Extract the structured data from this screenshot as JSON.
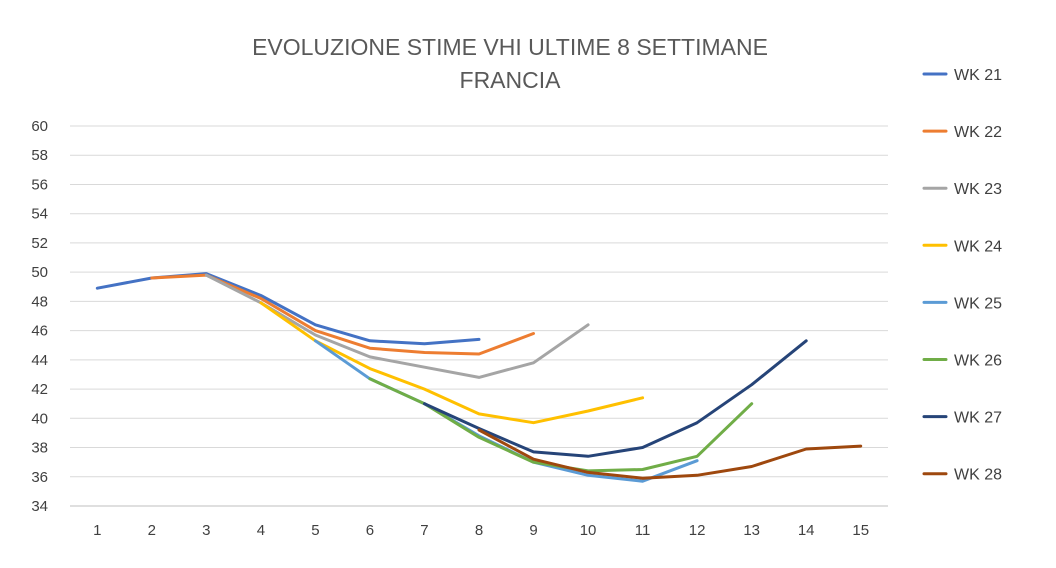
{
  "chart_data": {
    "type": "line",
    "title": [
      "EVOLUZIONE STIME VHI ULTIME 8 SETTIMANE",
      "FRANCIA"
    ],
    "xlabel": "",
    "ylabel": "",
    "x": [
      1,
      2,
      3,
      4,
      5,
      6,
      7,
      8,
      9,
      10,
      11,
      12,
      13,
      14,
      15
    ],
    "xlim": [
      0.5,
      15.5
    ],
    "ylim": [
      34,
      60
    ],
    "yticks": [
      34,
      36,
      38,
      40,
      42,
      44,
      46,
      48,
      50,
      52,
      54,
      56,
      58,
      60
    ],
    "grid": "horizontal",
    "legend_position": "right",
    "series": [
      {
        "name": "WK 21",
        "color": "#4472C4",
        "x": [
          1,
          2,
          3,
          4,
          5,
          6,
          7,
          8
        ],
        "values": [
          48.9,
          49.6,
          49.9,
          48.4,
          46.4,
          45.3,
          45.1,
          45.4
        ]
      },
      {
        "name": "WK 22",
        "color": "#ED7D31",
        "x": [
          2,
          3,
          4,
          5,
          6,
          7,
          8,
          9
        ],
        "values": [
          49.6,
          49.8,
          48.2,
          46.0,
          44.8,
          44.5,
          44.4,
          45.8
        ]
      },
      {
        "name": "WK 23",
        "color": "#A5A5A5",
        "x": [
          3,
          4,
          5,
          6,
          7,
          8,
          9,
          10
        ],
        "values": [
          49.8,
          47.9,
          45.7,
          44.2,
          43.5,
          42.8,
          43.8,
          46.4
        ]
      },
      {
        "name": "WK 24",
        "color": "#FFC000",
        "x": [
          4,
          5,
          6,
          7,
          8,
          9,
          10,
          11
        ],
        "values": [
          47.9,
          45.3,
          43.4,
          42.0,
          40.3,
          39.7,
          40.5,
          41.4
        ]
      },
      {
        "name": "WK 25",
        "color": "#5B9BD5",
        "x": [
          5,
          6,
          7,
          8,
          9,
          10,
          11,
          12
        ],
        "values": [
          45.3,
          42.7,
          41.0,
          38.8,
          37.0,
          36.1,
          35.7,
          37.1
        ]
      },
      {
        "name": "WK 26",
        "color": "#70AD47",
        "x": [
          6,
          7,
          8,
          9,
          10,
          11,
          12,
          13
        ],
        "values": [
          42.7,
          41.0,
          38.7,
          37.0,
          36.4,
          36.5,
          37.4,
          41.0
        ]
      },
      {
        "name": "WK 27",
        "color": "#264478",
        "x": [
          7,
          8,
          9,
          10,
          11,
          12,
          13,
          14
        ],
        "values": [
          41.0,
          39.3,
          37.7,
          37.4,
          38.0,
          39.7,
          42.3,
          45.3
        ]
      },
      {
        "name": "WK 28",
        "color": "#9E480E",
        "x": [
          8,
          9,
          10,
          11,
          12,
          13,
          14,
          15
        ],
        "values": [
          39.2,
          37.2,
          36.3,
          35.9,
          36.1,
          36.7,
          37.9,
          38.1
        ]
      }
    ]
  }
}
